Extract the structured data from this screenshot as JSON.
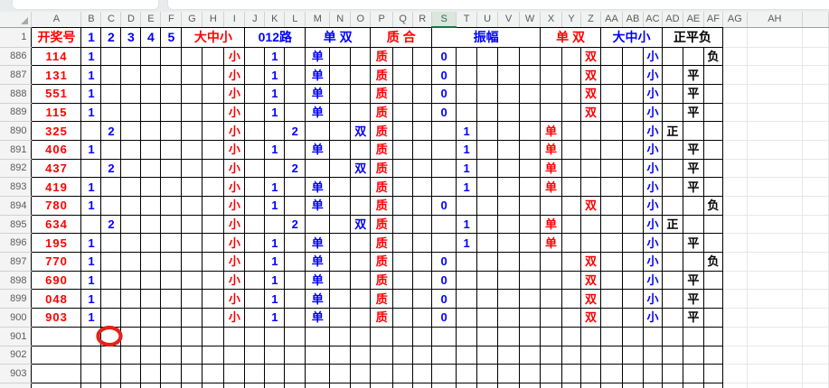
{
  "formula_bar": {
    "name_box_value": "",
    "formula_value": ""
  },
  "grid": {
    "selected_column": "S",
    "columns": [
      "A",
      "B",
      "C",
      "D",
      "E",
      "F",
      "G",
      "H",
      "I",
      "J",
      "K",
      "L",
      "M",
      "N",
      "O",
      "P",
      "Q",
      "R",
      "S",
      "T",
      "U",
      "V",
      "W",
      "X",
      "Y",
      "Z",
      "AA",
      "AB",
      "AC",
      "AD",
      "AE",
      "AF",
      "AG",
      "AH"
    ],
    "colors": {
      "red": "#ff0000",
      "blue": "#0000ff",
      "black": "#000000",
      "selected_green": "#1e7145"
    },
    "header_row": {
      "label": "1",
      "cells": [
        {
          "col": "A",
          "span": 1,
          "text": "开奖号",
          "color": "red"
        },
        {
          "col": "B",
          "span": 1,
          "text": "1",
          "color": "blue"
        },
        {
          "col": "C",
          "span": 1,
          "text": "2",
          "color": "blue"
        },
        {
          "col": "D",
          "span": 1,
          "text": "3",
          "color": "blue"
        },
        {
          "col": "E",
          "span": 1,
          "text": "4",
          "color": "blue"
        },
        {
          "col": "F",
          "span": 1,
          "text": "5",
          "color": "blue"
        },
        {
          "col": "G",
          "span": 3,
          "text": "大中小",
          "color": "red"
        },
        {
          "col": "J",
          "span": 3,
          "text": "012路",
          "color": "blue"
        },
        {
          "col": "M",
          "span": 3,
          "text": "单 双",
          "color": "blue"
        },
        {
          "col": "P",
          "span": 3,
          "text": "质 合",
          "color": "red"
        },
        {
          "col": "S",
          "span": 5,
          "text": "振幅",
          "color": "blue"
        },
        {
          "col": "X",
          "span": 3,
          "text": "单 双",
          "color": "red"
        },
        {
          "col": "AA",
          "span": 3,
          "text": "大中小",
          "color": "blue"
        },
        {
          "col": "AD",
          "span": 3,
          "text": "正平负",
          "color": "black"
        }
      ]
    },
    "rows": [
      {
        "label": "886",
        "cells": [
          {
            "col": "A",
            "text": "114",
            "color": "red"
          },
          {
            "col": "B",
            "text": "1",
            "color": "blue"
          },
          {
            "col": "I",
            "text": "小",
            "color": "red"
          },
          {
            "col": "K",
            "text": "1",
            "color": "blue"
          },
          {
            "col": "M",
            "text": "单",
            "color": "blue"
          },
          {
            "col": "P",
            "text": "质",
            "color": "red"
          },
          {
            "col": "S",
            "text": "0",
            "color": "blue"
          },
          {
            "col": "Z",
            "text": "双",
            "color": "red"
          },
          {
            "col": "AC",
            "text": "小",
            "color": "blue"
          },
          {
            "col": "AF",
            "text": "负",
            "color": "black"
          }
        ]
      },
      {
        "label": "887",
        "cells": [
          {
            "col": "A",
            "text": "131",
            "color": "red"
          },
          {
            "col": "B",
            "text": "1",
            "color": "blue"
          },
          {
            "col": "I",
            "text": "小",
            "color": "red"
          },
          {
            "col": "K",
            "text": "1",
            "color": "blue"
          },
          {
            "col": "M",
            "text": "单",
            "color": "blue"
          },
          {
            "col": "P",
            "text": "质",
            "color": "red"
          },
          {
            "col": "S",
            "text": "0",
            "color": "blue"
          },
          {
            "col": "Z",
            "text": "双",
            "color": "red"
          },
          {
            "col": "AC",
            "text": "小",
            "color": "blue"
          },
          {
            "col": "AE",
            "text": "平",
            "color": "black"
          }
        ]
      },
      {
        "label": "888",
        "cells": [
          {
            "col": "A",
            "text": "551",
            "color": "red"
          },
          {
            "col": "B",
            "text": "1",
            "color": "blue"
          },
          {
            "col": "I",
            "text": "小",
            "color": "red"
          },
          {
            "col": "K",
            "text": "1",
            "color": "blue"
          },
          {
            "col": "M",
            "text": "单",
            "color": "blue"
          },
          {
            "col": "P",
            "text": "质",
            "color": "red"
          },
          {
            "col": "S",
            "text": "0",
            "color": "blue"
          },
          {
            "col": "Z",
            "text": "双",
            "color": "red"
          },
          {
            "col": "AC",
            "text": "小",
            "color": "blue"
          },
          {
            "col": "AE",
            "text": "平",
            "color": "black"
          }
        ]
      },
      {
        "label": "889",
        "cells": [
          {
            "col": "A",
            "text": "115",
            "color": "red"
          },
          {
            "col": "B",
            "text": "1",
            "color": "blue"
          },
          {
            "col": "I",
            "text": "小",
            "color": "red"
          },
          {
            "col": "K",
            "text": "1",
            "color": "blue"
          },
          {
            "col": "M",
            "text": "单",
            "color": "blue"
          },
          {
            "col": "P",
            "text": "质",
            "color": "red"
          },
          {
            "col": "S",
            "text": "0",
            "color": "blue"
          },
          {
            "col": "Z",
            "text": "双",
            "color": "red"
          },
          {
            "col": "AC",
            "text": "小",
            "color": "blue"
          },
          {
            "col": "AE",
            "text": "平",
            "color": "black"
          }
        ]
      },
      {
        "label": "890",
        "cells": [
          {
            "col": "A",
            "text": "325",
            "color": "red"
          },
          {
            "col": "C",
            "text": "2",
            "color": "blue"
          },
          {
            "col": "I",
            "text": "小",
            "color": "red"
          },
          {
            "col": "L",
            "text": "2",
            "color": "blue"
          },
          {
            "col": "O",
            "text": "双",
            "color": "blue"
          },
          {
            "col": "P",
            "text": "质",
            "color": "red"
          },
          {
            "col": "T",
            "text": "1",
            "color": "blue"
          },
          {
            "col": "X",
            "text": "单",
            "color": "red"
          },
          {
            "col": "AC",
            "text": "小",
            "color": "blue"
          },
          {
            "col": "AD",
            "text": "正",
            "color": "black"
          }
        ]
      },
      {
        "label": "891",
        "cells": [
          {
            "col": "A",
            "text": "406",
            "color": "red"
          },
          {
            "col": "B",
            "text": "1",
            "color": "blue"
          },
          {
            "col": "I",
            "text": "小",
            "color": "red"
          },
          {
            "col": "K",
            "text": "1",
            "color": "blue"
          },
          {
            "col": "M",
            "text": "单",
            "color": "blue"
          },
          {
            "col": "P",
            "text": "质",
            "color": "red"
          },
          {
            "col": "T",
            "text": "1",
            "color": "blue"
          },
          {
            "col": "X",
            "text": "单",
            "color": "red"
          },
          {
            "col": "AC",
            "text": "小",
            "color": "blue"
          },
          {
            "col": "AE",
            "text": "平",
            "color": "black"
          }
        ]
      },
      {
        "label": "892",
        "cells": [
          {
            "col": "A",
            "text": "437",
            "color": "red"
          },
          {
            "col": "C",
            "text": "2",
            "color": "blue"
          },
          {
            "col": "I",
            "text": "小",
            "color": "red"
          },
          {
            "col": "L",
            "text": "2",
            "color": "blue"
          },
          {
            "col": "O",
            "text": "双",
            "color": "blue"
          },
          {
            "col": "P",
            "text": "质",
            "color": "red"
          },
          {
            "col": "T",
            "text": "1",
            "color": "blue"
          },
          {
            "col": "X",
            "text": "单",
            "color": "red"
          },
          {
            "col": "AC",
            "text": "小",
            "color": "blue"
          },
          {
            "col": "AE",
            "text": "平",
            "color": "black"
          }
        ]
      },
      {
        "label": "893",
        "cells": [
          {
            "col": "A",
            "text": "419",
            "color": "red"
          },
          {
            "col": "B",
            "text": "1",
            "color": "blue"
          },
          {
            "col": "I",
            "text": "小",
            "color": "red"
          },
          {
            "col": "K",
            "text": "1",
            "color": "blue"
          },
          {
            "col": "M",
            "text": "单",
            "color": "blue"
          },
          {
            "col": "P",
            "text": "质",
            "color": "red"
          },
          {
            "col": "T",
            "text": "1",
            "color": "blue"
          },
          {
            "col": "X",
            "text": "单",
            "color": "red"
          },
          {
            "col": "AC",
            "text": "小",
            "color": "blue"
          },
          {
            "col": "AE",
            "text": "平",
            "color": "black"
          }
        ]
      },
      {
        "label": "894",
        "cells": [
          {
            "col": "A",
            "text": "780",
            "color": "red"
          },
          {
            "col": "B",
            "text": "1",
            "color": "blue"
          },
          {
            "col": "I",
            "text": "小",
            "color": "red"
          },
          {
            "col": "K",
            "text": "1",
            "color": "blue"
          },
          {
            "col": "M",
            "text": "单",
            "color": "blue"
          },
          {
            "col": "P",
            "text": "质",
            "color": "red"
          },
          {
            "col": "S",
            "text": "0",
            "color": "blue"
          },
          {
            "col": "Z",
            "text": "双",
            "color": "red"
          },
          {
            "col": "AC",
            "text": "小",
            "color": "blue"
          },
          {
            "col": "AF",
            "text": "负",
            "color": "black"
          }
        ]
      },
      {
        "label": "895",
        "cells": [
          {
            "col": "A",
            "text": "634",
            "color": "red"
          },
          {
            "col": "C",
            "text": "2",
            "color": "blue"
          },
          {
            "col": "I",
            "text": "小",
            "color": "red"
          },
          {
            "col": "L",
            "text": "2",
            "color": "blue"
          },
          {
            "col": "O",
            "text": "双",
            "color": "blue"
          },
          {
            "col": "P",
            "text": "质",
            "color": "red"
          },
          {
            "col": "T",
            "text": "1",
            "color": "blue"
          },
          {
            "col": "X",
            "text": "单",
            "color": "red"
          },
          {
            "col": "AC",
            "text": "小",
            "color": "blue"
          },
          {
            "col": "AD",
            "text": "正",
            "color": "black"
          }
        ]
      },
      {
        "label": "896",
        "cells": [
          {
            "col": "A",
            "text": "195",
            "color": "red"
          },
          {
            "col": "B",
            "text": "1",
            "color": "blue"
          },
          {
            "col": "I",
            "text": "小",
            "color": "red"
          },
          {
            "col": "K",
            "text": "1",
            "color": "blue"
          },
          {
            "col": "M",
            "text": "单",
            "color": "blue"
          },
          {
            "col": "P",
            "text": "质",
            "color": "red"
          },
          {
            "col": "T",
            "text": "1",
            "color": "blue"
          },
          {
            "col": "X",
            "text": "单",
            "color": "red"
          },
          {
            "col": "AC",
            "text": "小",
            "color": "blue"
          },
          {
            "col": "AE",
            "text": "平",
            "color": "black"
          }
        ]
      },
      {
        "label": "897",
        "cells": [
          {
            "col": "A",
            "text": "770",
            "color": "red"
          },
          {
            "col": "B",
            "text": "1",
            "color": "blue"
          },
          {
            "col": "I",
            "text": "小",
            "color": "red"
          },
          {
            "col": "K",
            "text": "1",
            "color": "blue"
          },
          {
            "col": "M",
            "text": "单",
            "color": "blue"
          },
          {
            "col": "P",
            "text": "质",
            "color": "red"
          },
          {
            "col": "S",
            "text": "0",
            "color": "blue"
          },
          {
            "col": "Z",
            "text": "双",
            "color": "red"
          },
          {
            "col": "AC",
            "text": "小",
            "color": "blue"
          },
          {
            "col": "AF",
            "text": "负",
            "color": "black"
          }
        ]
      },
      {
        "label": "898",
        "cells": [
          {
            "col": "A",
            "text": "690",
            "color": "red"
          },
          {
            "col": "B",
            "text": "1",
            "color": "blue"
          },
          {
            "col": "I",
            "text": "小",
            "color": "red"
          },
          {
            "col": "K",
            "text": "1",
            "color": "blue"
          },
          {
            "col": "M",
            "text": "单",
            "color": "blue"
          },
          {
            "col": "P",
            "text": "质",
            "color": "red"
          },
          {
            "col": "S",
            "text": "0",
            "color": "blue"
          },
          {
            "col": "Z",
            "text": "双",
            "color": "red"
          },
          {
            "col": "AC",
            "text": "小",
            "color": "blue"
          },
          {
            "col": "AE",
            "text": "平",
            "color": "black"
          }
        ]
      },
      {
        "label": "899",
        "cells": [
          {
            "col": "A",
            "text": "048",
            "color": "red"
          },
          {
            "col": "B",
            "text": "1",
            "color": "blue"
          },
          {
            "col": "I",
            "text": "小",
            "color": "red"
          },
          {
            "col": "K",
            "text": "1",
            "color": "blue"
          },
          {
            "col": "M",
            "text": "单",
            "color": "blue"
          },
          {
            "col": "P",
            "text": "质",
            "color": "red"
          },
          {
            "col": "S",
            "text": "0",
            "color": "blue"
          },
          {
            "col": "Z",
            "text": "双",
            "color": "red"
          },
          {
            "col": "AC",
            "text": "小",
            "color": "blue"
          },
          {
            "col": "AE",
            "text": "平",
            "color": "black"
          }
        ]
      },
      {
        "label": "900",
        "cells": [
          {
            "col": "A",
            "text": "903",
            "color": "red"
          },
          {
            "col": "B",
            "text": "1",
            "color": "blue"
          },
          {
            "col": "I",
            "text": "小",
            "color": "red"
          },
          {
            "col": "K",
            "text": "1",
            "color": "blue"
          },
          {
            "col": "M",
            "text": "单",
            "color": "blue"
          },
          {
            "col": "P",
            "text": "质",
            "color": "red"
          },
          {
            "col": "S",
            "text": "0",
            "color": "blue"
          },
          {
            "col": "Z",
            "text": "双",
            "color": "red"
          },
          {
            "col": "AC",
            "text": "小",
            "color": "blue"
          },
          {
            "col": "AE",
            "text": "平",
            "color": "black"
          }
        ]
      },
      {
        "label": "901",
        "cells": []
      },
      {
        "label": "902",
        "cells": []
      },
      {
        "label": "903",
        "cells": []
      },
      {
        "label": "904",
        "cells": []
      }
    ],
    "annotation": {
      "type": "ellipse-outline",
      "row": "901",
      "col": "C",
      "stroke": "#e2231a"
    }
  }
}
